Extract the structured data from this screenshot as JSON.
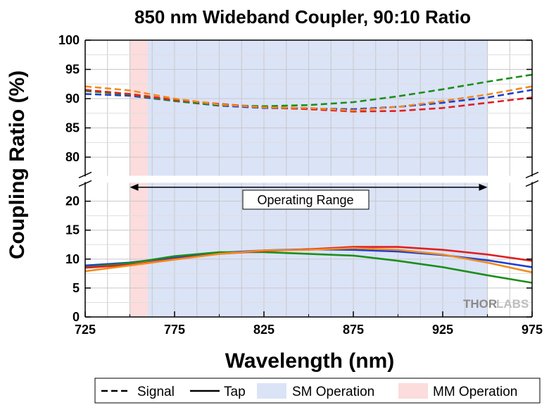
{
  "chart_data": {
    "type": "line",
    "title": "850 nm Wideband Coupler, 90:10 Ratio",
    "xlabel": "Wavelength (nm)",
    "ylabel": "Coupling Ratio (%)",
    "xlim": [
      725,
      975
    ],
    "x_ticks": [
      "725",
      "775",
      "825",
      "875",
      "925",
      "975"
    ],
    "y_ticks_upper": [
      "80",
      "85",
      "90",
      "95",
      "100"
    ],
    "y_ticks_lower": [
      "0",
      "5",
      "10",
      "15",
      "20"
    ],
    "axis_break": {
      "lower_range": [
        0,
        23
      ],
      "upper_range": [
        77,
        100
      ]
    },
    "grid": true,
    "regions": [
      {
        "name": "SM Operation",
        "x": [
          750,
          950
        ],
        "color": "#dbe3f7"
      },
      {
        "name": "MM Operation",
        "x": [
          750,
          760
        ],
        "color": "#fcdcdc"
      }
    ],
    "annotation": {
      "text": "Operating Range",
      "x": [
        750,
        950
      ]
    },
    "watermark": {
      "part1": "THOR",
      "part2": "LABS"
    },
    "legend": {
      "placement": "bottom",
      "entries": [
        {
          "label": "Signal",
          "style": "dashed"
        },
        {
          "label": "Tap",
          "style": "solid"
        },
        {
          "label": "SM Operation",
          "color": "#dbe3f7"
        },
        {
          "label": "MM Operation",
          "color": "#fcdcdc"
        }
      ]
    },
    "x": [
      725,
      750,
      775,
      800,
      825,
      850,
      875,
      900,
      925,
      950,
      975
    ],
    "series": [
      {
        "line": "Signal",
        "color": "#1f3fd0",
        "dash": true,
        "values": [
          90.8,
          90.5,
          89.6,
          88.8,
          88.4,
          88.3,
          88.2,
          88.6,
          89.3,
          90.2,
          91.5
        ]
      },
      {
        "line": "Signal",
        "color": "#1a8f1a",
        "dash": true,
        "values": [
          91.3,
          90.7,
          89.6,
          88.9,
          88.7,
          88.9,
          89.4,
          90.4,
          91.6,
          92.9,
          94.1
        ]
      },
      {
        "line": "Signal",
        "color": "#e02020",
        "dash": true,
        "values": [
          91.5,
          90.8,
          89.8,
          89.1,
          88.5,
          88.2,
          87.8,
          87.9,
          88.4,
          89.3,
          90.2
        ]
      },
      {
        "line": "Signal",
        "color": "#f08c1e",
        "dash": true,
        "values": [
          92.1,
          91.4,
          90.0,
          89.0,
          88.5,
          88.4,
          88.0,
          88.6,
          89.6,
          90.7,
          92.1
        ]
      },
      {
        "line": "Tap",
        "color": "#1f3fd0",
        "dash": false,
        "values": [
          8.9,
          9.4,
          10.3,
          11.1,
          11.5,
          11.7,
          11.6,
          11.3,
          10.7,
          9.8,
          8.6
        ]
      },
      {
        "line": "Tap",
        "color": "#1a8f1a",
        "dash": false,
        "values": [
          8.6,
          9.3,
          10.5,
          11.2,
          11.2,
          10.9,
          10.6,
          9.7,
          8.6,
          7.2,
          5.9
        ]
      },
      {
        "line": "Tap",
        "color": "#e02020",
        "dash": false,
        "values": [
          8.5,
          9.0,
          10.0,
          10.9,
          11.4,
          11.7,
          12.1,
          12.1,
          11.6,
          10.8,
          9.7
        ]
      },
      {
        "line": "Tap",
        "color": "#f08c1e",
        "dash": false,
        "values": [
          7.9,
          8.9,
          9.9,
          10.9,
          11.5,
          11.6,
          11.9,
          11.6,
          10.8,
          9.4,
          7.7
        ]
      }
    ]
  }
}
